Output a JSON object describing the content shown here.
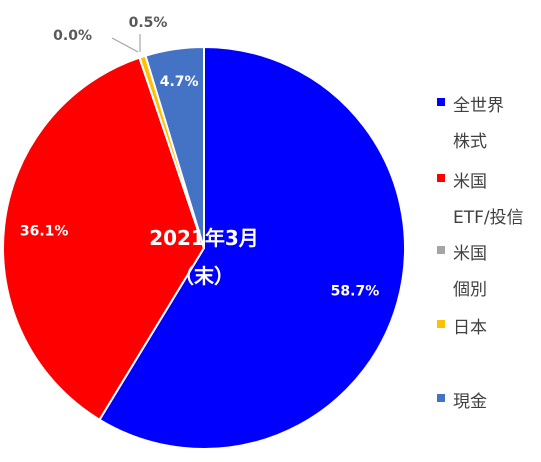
{
  "chart_data": {
    "type": "pie",
    "center_label": [
      "2021年3月",
      "（末）"
    ],
    "slices": [
      {
        "name": [
          "全世界",
          "株式"
        ],
        "value": 58.7,
        "label": "58.7%",
        "color": "#0000ff"
      },
      {
        "name": [
          "米国",
          "ETF/投信"
        ],
        "value": 36.1,
        "label": "36.1%",
        "color": "#ff0000"
      },
      {
        "name": [
          "米国",
          "個別"
        ],
        "value": 0.0,
        "label": "0.0%",
        "color": "#a5a5a5"
      },
      {
        "name": [
          "日本"
        ],
        "value": 0.5,
        "label": "0.5%",
        "color": "#ffc000"
      },
      {
        "name": [
          "現金"
        ],
        "value": 4.7,
        "label": "4.7%",
        "color": "#4472c4"
      }
    ],
    "legend_position": "right",
    "start_angle": "12 o'clock",
    "direction": "clockwise"
  }
}
